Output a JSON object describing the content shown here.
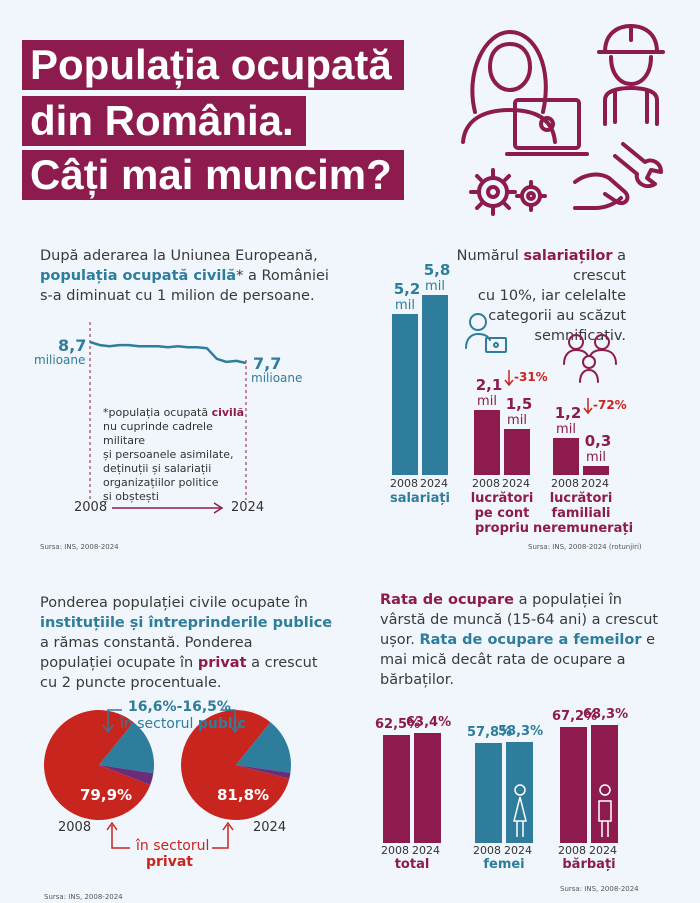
{
  "title": {
    "line1": "Populația ocupată",
    "line2": "din România.",
    "line3": "Câți mai muncim?"
  },
  "panel1": {
    "intro1": "După aderarea la Uniunea Europeană,",
    "intro2_bold": "populația ocupată civilă",
    "intro2_rest": "* a României",
    "intro3": "s-a diminuat cu 1 milion de persoane.",
    "start_value": "8,7",
    "start_unit": "milioane",
    "end_value": "7,7",
    "end_unit": "milioane",
    "note_l1a": "*populația ocupată ",
    "note_l1b": "civilă",
    "note_l2": "nu cuprinde cadrele militare",
    "note_l3": "și persoanele asimilate,",
    "note_l4": "deținuții și salariații",
    "note_l5": "organizațiilor politice",
    "note_l6": "și obștești",
    "year_start": "2008",
    "year_end": "2024",
    "source": "Sursa: INS, 2008-2024"
  },
  "panel2": {
    "intro1a": "Numărul ",
    "intro1b": "salariaților",
    "intro1c": " a crescut",
    "intro2": "cu 10%, iar celelalte",
    "intro3": "categorii au scăzut",
    "intro4": "semnificativ.",
    "unit": "mil",
    "groups": [
      {
        "label1": "salariați",
        "label2": "",
        "label3": "",
        "v2008": "5,2",
        "v2024": "5,8",
        "change": ""
      },
      {
        "label1": "lucrători",
        "label2": "pe cont",
        "label3": "propriu",
        "v2008": "2,1",
        "v2024": "1,5",
        "change": "-31%"
      },
      {
        "label1": "lucrători",
        "label2": "familiali",
        "label3": "neremunerați",
        "v2008": "1,2",
        "v2024": "0,3",
        "change": "-72%"
      }
    ],
    "year_a": "2008",
    "year_b": "2024",
    "source": "Sursa: INS, 2008-2024 (rotunjiri)"
  },
  "panel3": {
    "l1": "Ponderea populației civile ocupate în",
    "l2": "instituțiile și întreprinderile publice",
    "l3": "a rămas constantă. Ponderea",
    "l4a": "populației ocupate în ",
    "l4b": "privat",
    "l4c": " a crescut",
    "l5": "cu 2 puncte procentuale.",
    "public_range": "16,6%-16,5%",
    "public_label_a": "în sectorul ",
    "public_label_b": "public",
    "private_2008": "79,9%",
    "private_2024": "81,8%",
    "year_left": "2008",
    "year_right": "2024",
    "private_label_a": "în sectorul",
    "private_label_b": "privat",
    "source": "Sursa: INS, 2008-2024"
  },
  "panel4": {
    "l1a": "Rata de ocupare",
    "l1b": " a populației în",
    "l2": "vârstă de muncă (15-64 ani) a crescut",
    "l3a": "ușor. ",
    "l3b": "Rata de ocupare a femeilor",
    "l3c": " e",
    "l4": "mai mică decât rata de ocupare a",
    "l5": "bărbaților.",
    "groups": [
      {
        "name": "total",
        "v2008": "62,5%",
        "v2024": "63,4%"
      },
      {
        "name": "femei",
        "v2008": "57,8%",
        "v2024": "58,3%"
      },
      {
        "name": "bărbați",
        "v2008": "67,2%",
        "v2024": "68,3%"
      }
    ],
    "year_a": "2008",
    "year_b": "2024",
    "source": "Sursa: INS, 2008-2024"
  },
  "chart_data": [
    {
      "type": "line",
      "x": [
        2008,
        2009,
        2010,
        2011,
        2012,
        2013,
        2014,
        2015,
        2016,
        2017,
        2018,
        2019,
        2020,
        2021,
        2022,
        2023,
        2024
      ],
      "series": [
        {
          "values": [
            8.7,
            8.55,
            8.5,
            8.55,
            8.55,
            8.5,
            8.5,
            8.5,
            8.45,
            8.5,
            8.45,
            8.45,
            8.4,
            7.9,
            7.75,
            7.8,
            7.7
          ]
        }
      ],
      "unit": "milioane"
    },
    {
      "type": "bar",
      "categories": [
        "salariați",
        "lucrători pe cont propriu",
        "lucrători familiali neremunerați"
      ],
      "series": [
        {
          "name": "2008",
          "values": [
            5.2,
            2.1,
            1.2
          ]
        },
        {
          "name": "2024",
          "values": [
            5.8,
            1.5,
            0.3
          ]
        }
      ],
      "unit": "mil"
    },
    {
      "type": "pie",
      "year": 2008,
      "slices": [
        {
          "label": "privat",
          "value": 79.9
        },
        {
          "label": "public",
          "value": 16.6
        },
        {
          "label": "",
          "value": 3.5
        }
      ]
    },
    {
      "type": "pie",
      "year": 2024,
      "slices": [
        {
          "label": "privat",
          "value": 81.8
        },
        {
          "label": "public",
          "value": 16.5
        },
        {
          "label": "",
          "value": 1.7
        }
      ]
    },
    {
      "type": "bar",
      "categories": [
        "total",
        "femei",
        "bărbați"
      ],
      "series": [
        {
          "name": "2008",
          "values": [
            62.5,
            57.8,
            67.2
          ]
        },
        {
          "name": "2024",
          "values": [
            63.4,
            58.3,
            68.3
          ]
        }
      ],
      "unit": "%"
    }
  ],
  "colors": {
    "magenta": "#8d1b4d",
    "teal": "#2e7d9c",
    "red": "#c8251e",
    "purple": "#6b2d7a"
  }
}
